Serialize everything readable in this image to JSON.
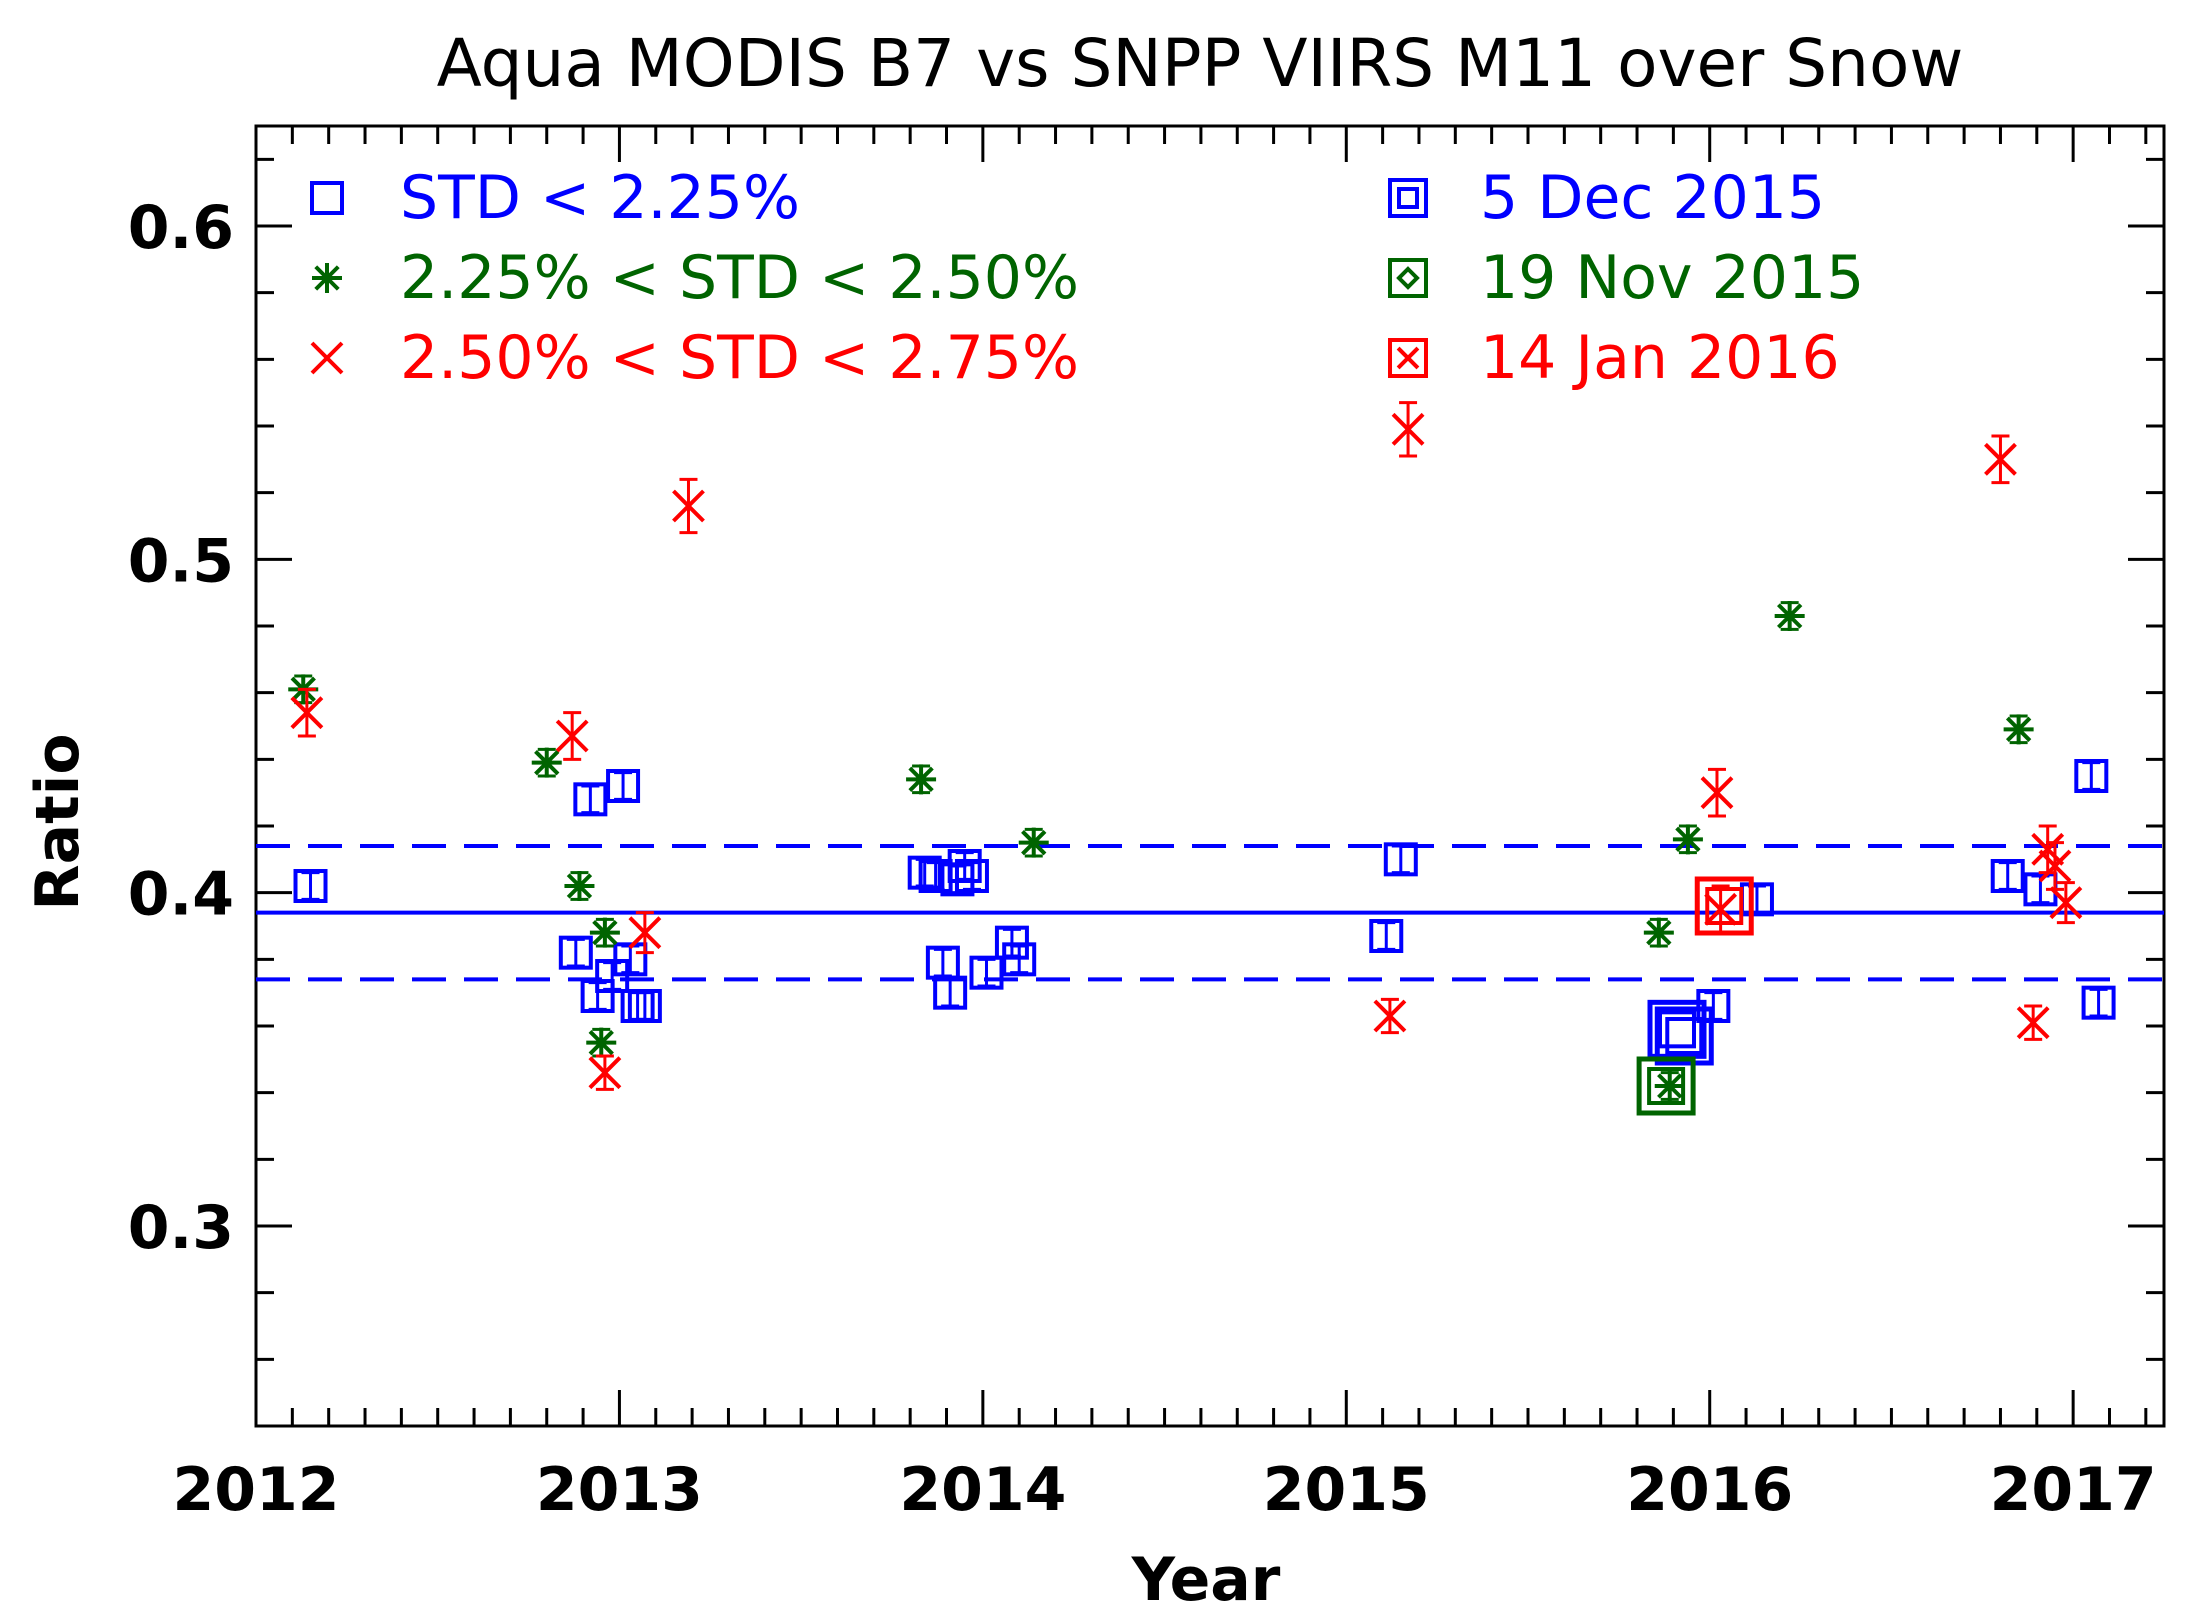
{
  "chart_data": {
    "type": "scatter",
    "title": "Aqua MODIS B7 vs SNPP VIIRS M11 over Snow",
    "xlabel": "Year",
    "ylabel": "Ratio",
    "xlim": [
      2012,
      2017.25
    ],
    "ylim": [
      0.24,
      0.63
    ],
    "x_major_ticks": [
      2012,
      2013,
      2014,
      2015,
      2016,
      2017
    ],
    "x_tick_labels": [
      "2012",
      "2013",
      "2014",
      "2015",
      "2016",
      "2017"
    ],
    "x_minor_step": 0.1,
    "y_major_ticks": [
      0.3,
      0.4,
      0.5,
      0.6
    ],
    "y_tick_labels": [
      "0.3",
      "0.4",
      "0.5",
      "0.6"
    ],
    "y_minor_step": 0.02,
    "reference_lines": {
      "mean": 0.394,
      "upper": 0.414,
      "lower": 0.374,
      "color": "#0000ff"
    },
    "colors": {
      "blue": "#0000ff",
      "green": "#006400",
      "red": "#ff0000"
    },
    "legend_left": [
      {
        "label": "STD < 2.25%",
        "marker": "square",
        "color": "#0000ff"
      },
      {
        "label": "2.25% < STD < 2.50%",
        "marker": "asterisk",
        "color": "#006400"
      },
      {
        "label": "2.50% < STD < 2.75%",
        "marker": "x",
        "color": "#ff0000"
      }
    ],
    "legend_right": [
      {
        "label": "5 Dec 2015",
        "marker": "square-in-square",
        "color": "#0000ff"
      },
      {
        "label": "19 Nov 2015",
        "marker": "diamond-in-square",
        "color": "#006400"
      },
      {
        "label": "14 Jan 2016",
        "marker": "x-in-square",
        "color": "#ff0000"
      }
    ],
    "series": [
      {
        "name": "STD < 2.25%",
        "marker": "square",
        "color": "#0000ff",
        "points": [
          {
            "x": 2012.15,
            "y": 0.402,
            "err": 0.004
          },
          {
            "x": 2012.88,
            "y": 0.382,
            "err": 0.004
          },
          {
            "x": 2012.92,
            "y": 0.428,
            "err": 0.004
          },
          {
            "x": 2012.94,
            "y": 0.369,
            "err": 0.004
          },
          {
            "x": 2012.98,
            "y": 0.375,
            "err": 0.004
          },
          {
            "x": 2013.01,
            "y": 0.432,
            "err": 0.004
          },
          {
            "x": 2013.03,
            "y": 0.38,
            "err": 0.004
          },
          {
            "x": 2013.05,
            "y": 0.366,
            "err": 0.004
          },
          {
            "x": 2013.07,
            "y": 0.366,
            "err": 0.004
          },
          {
            "x": 2013.84,
            "y": 0.406,
            "err": 0.004
          },
          {
            "x": 2013.87,
            "y": 0.405,
            "err": 0.004
          },
          {
            "x": 2013.89,
            "y": 0.379,
            "err": 0.004
          },
          {
            "x": 2013.91,
            "y": 0.37,
            "err": 0.004
          },
          {
            "x": 2013.93,
            "y": 0.404,
            "err": 0.004
          },
          {
            "x": 2013.95,
            "y": 0.408,
            "err": 0.004
          },
          {
            "x": 2013.97,
            "y": 0.405,
            "err": 0.004
          },
          {
            "x": 2014.01,
            "y": 0.376,
            "err": 0.004
          },
          {
            "x": 2014.08,
            "y": 0.385,
            "err": 0.004
          },
          {
            "x": 2014.1,
            "y": 0.38,
            "err": 0.004
          },
          {
            "x": 2015.11,
            "y": 0.387,
            "err": 0.004
          },
          {
            "x": 2015.15,
            "y": 0.41,
            "err": 0.004
          },
          {
            "x": 2016.01,
            "y": 0.366,
            "err": 0.004
          },
          {
            "x": 2016.13,
            "y": 0.398,
            "err": 0.004
          },
          {
            "x": 2016.82,
            "y": 0.405,
            "err": 0.004
          },
          {
            "x": 2016.91,
            "y": 0.401,
            "err": 0.004
          },
          {
            "x": 2017.05,
            "y": 0.435,
            "err": 0.004
          },
          {
            "x": 2017.07,
            "y": 0.367,
            "err": 0.004
          }
        ]
      },
      {
        "name": "2.25% < STD < 2.50%",
        "marker": "asterisk",
        "color": "#006400",
        "points": [
          {
            "x": 2012.13,
            "y": 0.461,
            "err": 0.004
          },
          {
            "x": 2012.8,
            "y": 0.439,
            "err": 0.004
          },
          {
            "x": 2012.89,
            "y": 0.402,
            "err": 0.004
          },
          {
            "x": 2012.96,
            "y": 0.388,
            "err": 0.004
          },
          {
            "x": 2012.95,
            "y": 0.355,
            "err": 0.004
          },
          {
            "x": 2013.83,
            "y": 0.434,
            "err": 0.004
          },
          {
            "x": 2014.14,
            "y": 0.415,
            "err": 0.004
          },
          {
            "x": 2015.86,
            "y": 0.388,
            "err": 0.004
          },
          {
            "x": 2015.94,
            "y": 0.416,
            "err": 0.004
          },
          {
            "x": 2015.89,
            "y": 0.342,
            "err": 0.004
          },
          {
            "x": 2016.22,
            "y": 0.483,
            "err": 0.004
          },
          {
            "x": 2016.85,
            "y": 0.449,
            "err": 0.004
          }
        ]
      },
      {
        "name": "2.50% < STD < 2.75%",
        "marker": "x",
        "color": "#ff0000",
        "points": [
          {
            "x": 2012.14,
            "y": 0.454,
            "err": 0.007
          },
          {
            "x": 2012.87,
            "y": 0.447,
            "err": 0.007
          },
          {
            "x": 2012.96,
            "y": 0.346,
            "err": 0.005
          },
          {
            "x": 2013.07,
            "y": 0.388,
            "err": 0.006
          },
          {
            "x": 2013.19,
            "y": 0.516,
            "err": 0.008
          },
          {
            "x": 2015.12,
            "y": 0.363,
            "err": 0.005
          },
          {
            "x": 2015.17,
            "y": 0.539,
            "err": 0.008
          },
          {
            "x": 2016.02,
            "y": 0.43,
            "err": 0.007
          },
          {
            "x": 2016.03,
            "y": 0.395,
            "err": 0.007
          },
          {
            "x": 2016.8,
            "y": 0.53,
            "err": 0.007
          },
          {
            "x": 2016.89,
            "y": 0.361,
            "err": 0.005
          },
          {
            "x": 2016.93,
            "y": 0.413,
            "err": 0.007
          },
          {
            "x": 2016.95,
            "y": 0.408,
            "err": 0.007
          },
          {
            "x": 2016.98,
            "y": 0.397,
            "err": 0.006
          }
        ]
      }
    ],
    "highlights": [
      {
        "name": "5 Dec 2015",
        "marker": "square-in-square",
        "color": "#0000ff",
        "points": [
          {
            "x": 2015.91,
            "y": 0.359
          },
          {
            "x": 2015.93,
            "y": 0.357
          }
        ]
      },
      {
        "name": "19 Nov 2015",
        "marker": "diamond-in-square",
        "color": "#006400",
        "points": [
          {
            "x": 2015.88,
            "y": 0.342
          }
        ]
      },
      {
        "name": "14 Jan 2016",
        "marker": "x-in-square",
        "color": "#ff0000",
        "points": [
          {
            "x": 2016.04,
            "y": 0.396
          }
        ]
      }
    ]
  }
}
